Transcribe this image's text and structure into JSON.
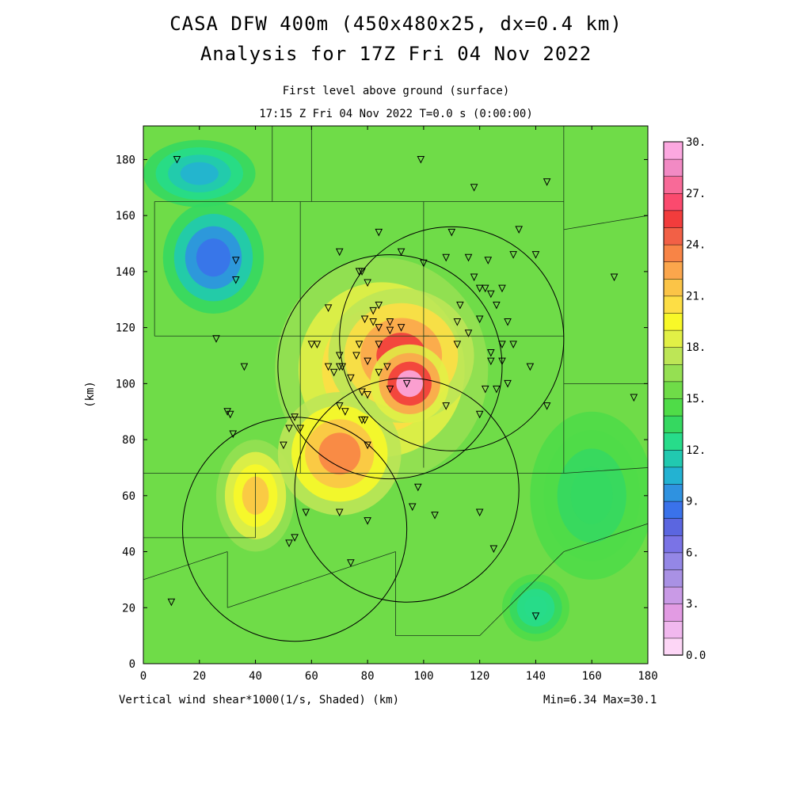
{
  "title_line1": "CASA DFW 400m (450x480x25, dx=0.4 km)",
  "title_line2": "Analysis for 17Z Fri 04 Nov 2022",
  "subtitle_line1": "First level above ground (surface)",
  "subtitle_line2": "17:15 Z Fri 04 Nov 2022    T=0.0 s (0:00:00)",
  "footer_left": "Vertical wind shear*1000(1/s, Shaded)  (km)",
  "footer_right": "Min=6.34 Max=30.1",
  "chart_data": {
    "type": "heatmap",
    "title": "CASA DFW 400m (450x480x25, dx=0.4 km)",
    "xlabel": "(km)",
    "ylabel": "(km)",
    "xlim": [
      0,
      180
    ],
    "ylim": [
      0,
      192
    ],
    "x_ticks": [
      "0",
      "20",
      "40",
      "60",
      "80",
      "100",
      "120",
      "140",
      "160",
      "180"
    ],
    "y_ticks": [
      "0",
      "20",
      "40",
      "60",
      "80",
      "100",
      "120",
      "140",
      "160",
      "180"
    ],
    "colorbar_labels": [
      "0.0",
      "3.",
      "6.",
      "9.",
      "12.",
      "15.",
      "18.",
      "21.",
      "24.",
      "27.",
      "30."
    ],
    "colorbar_colors": [
      "#fdd6f6",
      "#f1b8ee",
      "#e29be3",
      "#c99ae6",
      "#a991e4",
      "#9487e6",
      "#7a73e6",
      "#5b66e0",
      "#3a72ea",
      "#2f92e0",
      "#23b2d2",
      "#21c9b0",
      "#27dc8a",
      "#35d860",
      "#4fdc48",
      "#6fdc48",
      "#95e052",
      "#bde656",
      "#e2f046",
      "#f8f828",
      "#fdde45",
      "#fbc447",
      "#fba64c",
      "#f88446",
      "#f26046",
      "#f23c3c",
      "#fb4a6e",
      "#f86a98",
      "#f28ac4",
      "#fca8e0"
    ],
    "field_min": 6.34,
    "field_max": 30.1,
    "field_blobs": [
      {
        "x": 95,
        "y": 100,
        "rx": 14,
        "ry": 14,
        "v": 29
      },
      {
        "x": 92,
        "y": 110,
        "rx": 26,
        "ry": 24,
        "v": 25
      },
      {
        "x": 85,
        "y": 105,
        "rx": 38,
        "ry": 40,
        "v": 22
      },
      {
        "x": 70,
        "y": 75,
        "rx": 22,
        "ry": 22,
        "v": 23
      },
      {
        "x": 40,
        "y": 60,
        "rx": 14,
        "ry": 20,
        "v": 21
      },
      {
        "x": 25,
        "y": 145,
        "rx": 18,
        "ry": 20,
        "v": 8
      },
      {
        "x": 20,
        "y": 175,
        "rx": 20,
        "ry": 12,
        "v": 10
      },
      {
        "x": 140,
        "y": 20,
        "rx": 12,
        "ry": 12,
        "v": 12
      },
      {
        "x": 160,
        "y": 60,
        "rx": 22,
        "ry": 30,
        "v": 13
      }
    ],
    "radar_rings": [
      {
        "x": 88,
        "y": 106,
        "r": 40
      },
      {
        "x": 110,
        "y": 116,
        "r": 40
      },
      {
        "x": 94,
        "y": 62,
        "r": 40
      },
      {
        "x": 54,
        "y": 48,
        "r": 40
      }
    ],
    "stations": [
      [
        12,
        180
      ],
      [
        99,
        180
      ],
      [
        118,
        170
      ],
      [
        144,
        172
      ],
      [
        84,
        154
      ],
      [
        110,
        154
      ],
      [
        134,
        155
      ],
      [
        132,
        146
      ],
      [
        140,
        146
      ],
      [
        33,
        144
      ],
      [
        33,
        137
      ],
      [
        70,
        147
      ],
      [
        78,
        140
      ],
      [
        77,
        140
      ],
      [
        92,
        147
      ],
      [
        108,
        145
      ],
      [
        116,
        145
      ],
      [
        123,
        144
      ],
      [
        100,
        143
      ],
      [
        168,
        138
      ],
      [
        118,
        138
      ],
      [
        80,
        136
      ],
      [
        122,
        134
      ],
      [
        120,
        134
      ],
      [
        128,
        134
      ],
      [
        124,
        132
      ],
      [
        126,
        128
      ],
      [
        113,
        128
      ],
      [
        84,
        128
      ],
      [
        82,
        126
      ],
      [
        66,
        127
      ],
      [
        88,
        122
      ],
      [
        82,
        122
      ],
      [
        79,
        123
      ],
      [
        92,
        120
      ],
      [
        130,
        122
      ],
      [
        112,
        122
      ],
      [
        120,
        123
      ],
      [
        84,
        120
      ],
      [
        88,
        119
      ],
      [
        116,
        118
      ],
      [
        26,
        116
      ],
      [
        62,
        114
      ],
      [
        60,
        114
      ],
      [
        84,
        114
      ],
      [
        77,
        114
      ],
      [
        112,
        114
      ],
      [
        128,
        114
      ],
      [
        132,
        114
      ],
      [
        124,
        111
      ],
      [
        70,
        110
      ],
      [
        76,
        110
      ],
      [
        80,
        108
      ],
      [
        66,
        106
      ],
      [
        70,
        106
      ],
      [
        71,
        106
      ],
      [
        36,
        106
      ],
      [
        124,
        108
      ],
      [
        128,
        108
      ],
      [
        138,
        106
      ],
      [
        84,
        104
      ],
      [
        87,
        106
      ],
      [
        68,
        104
      ],
      [
        94,
        100
      ],
      [
        74,
        102
      ],
      [
        122,
        98
      ],
      [
        126,
        98
      ],
      [
        130,
        100
      ],
      [
        88,
        98
      ],
      [
        78,
        97
      ],
      [
        80,
        96
      ],
      [
        175,
        95
      ],
      [
        70,
        92
      ],
      [
        108,
        92
      ],
      [
        144,
        92
      ],
      [
        30,
        90
      ],
      [
        31,
        89
      ],
      [
        54,
        88
      ],
      [
        72,
        90
      ],
      [
        120,
        89
      ],
      [
        52,
        84
      ],
      [
        78,
        87
      ],
      [
        79,
        87
      ],
      [
        56,
        84
      ],
      [
        32,
        82
      ],
      [
        50,
        78
      ],
      [
        80,
        78
      ],
      [
        98,
        63
      ],
      [
        96,
        56
      ],
      [
        58,
        54
      ],
      [
        70,
        54
      ],
      [
        80,
        51
      ],
      [
        104,
        53
      ],
      [
        120,
        54
      ],
      [
        54,
        45
      ],
      [
        52,
        43
      ],
      [
        125,
        41
      ],
      [
        74,
        36
      ],
      [
        10,
        22
      ],
      [
        140,
        17
      ]
    ],
    "county_lines": [
      [
        [
          0,
          193
        ],
        [
          60,
          193
        ]
      ],
      [
        [
          46,
          193
        ],
        [
          46,
          165
        ]
      ],
      [
        [
          60,
          193
        ],
        [
          60,
          165
        ]
      ],
      [
        [
          4,
          165
        ],
        [
          56,
          165
        ]
      ],
      [
        [
          56,
          165
        ],
        [
          100,
          165
        ]
      ],
      [
        [
          4,
          165
        ],
        [
          4,
          117
        ]
      ],
      [
        [
          4,
          117
        ],
        [
          56,
          117
        ]
      ],
      [
        [
          56,
          117
        ],
        [
          56,
          165
        ]
      ],
      [
        [
          56,
          117
        ],
        [
          102,
          117
        ]
      ],
      [
        [
          100,
          165
        ],
        [
          100,
          117
        ]
      ],
      [
        [
          100,
          165
        ],
        [
          150,
          165
        ]
      ],
      [
        [
          150,
          193
        ],
        [
          150,
          155
        ]
      ],
      [
        [
          150,
          155
        ],
        [
          180,
          160
        ]
      ],
      [
        [
          100,
          117
        ],
        [
          150,
          117
        ]
      ],
      [
        [
          150,
          155
        ],
        [
          150,
          117
        ]
      ],
      [
        [
          150,
          117
        ],
        [
          150,
          100
        ]
      ],
      [
        [
          150,
          100
        ],
        [
          180,
          100
        ]
      ],
      [
        [
          100,
          117
        ],
        [
          100,
          70
        ]
      ],
      [
        [
          56,
          117
        ],
        [
          56,
          68
        ]
      ],
      [
        [
          0,
          68
        ],
        [
          56,
          68
        ]
      ],
      [
        [
          56,
          68
        ],
        [
          100,
          68
        ]
      ],
      [
        [
          100,
          68
        ],
        [
          150,
          68
        ]
      ],
      [
        [
          150,
          100
        ],
        [
          150,
          68
        ]
      ],
      [
        [
          150,
          68
        ],
        [
          180,
          70
        ]
      ],
      [
        [
          0,
          30
        ],
        [
          30,
          40
        ]
      ],
      [
        [
          30,
          40
        ],
        [
          30,
          20
        ]
      ],
      [
        [
          30,
          20
        ],
        [
          60,
          30
        ]
      ],
      [
        [
          60,
          30
        ],
        [
          90,
          40
        ]
      ],
      [
        [
          90,
          40
        ],
        [
          90,
          10
        ]
      ],
      [
        [
          90,
          10
        ],
        [
          120,
          10
        ]
      ],
      [
        [
          120,
          10
        ],
        [
          150,
          40
        ]
      ],
      [
        [
          150,
          40
        ],
        [
          180,
          50
        ]
      ],
      [
        [
          0,
          45
        ],
        [
          40,
          45
        ]
      ],
      [
        [
          40,
          45
        ],
        [
          40,
          68
        ]
      ]
    ]
  }
}
